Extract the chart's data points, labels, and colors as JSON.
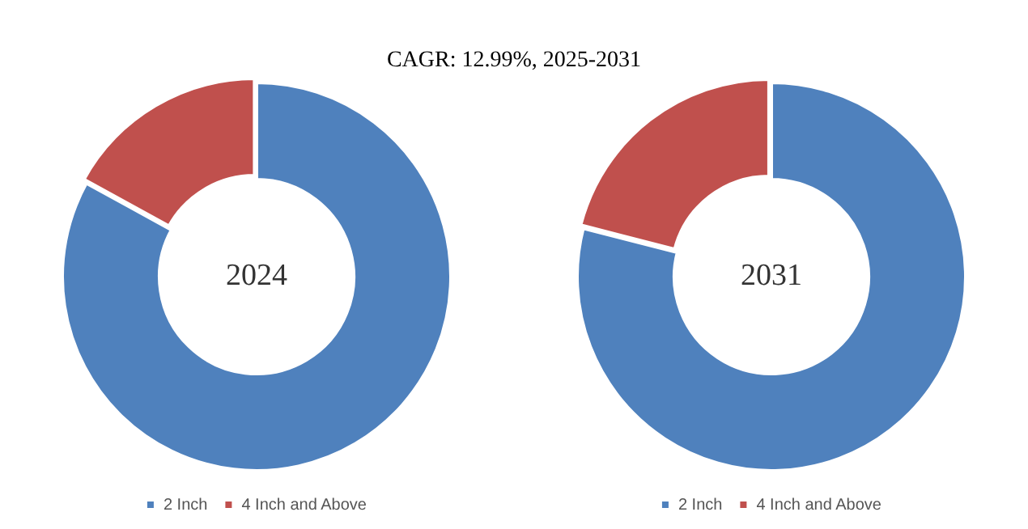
{
  "chart_data": [
    {
      "type": "donut",
      "title": "2024",
      "annotations": [
        "CAGR:   12.99%, 2025-2031"
      ],
      "categories": [
        "2 Inch",
        "4 Inch and Above"
      ],
      "values": [
        83,
        17
      ],
      "colors": [
        "#4f81bd",
        "#c0504d"
      ],
      "legend": "bottom"
    },
    {
      "type": "donut",
      "title": "2031",
      "categories": [
        "2 Inch",
        "4 Inch and Above"
      ],
      "values": [
        79,
        21
      ],
      "colors": [
        "#4f81bd",
        "#c0504d"
      ],
      "legend": "bottom"
    }
  ]
}
